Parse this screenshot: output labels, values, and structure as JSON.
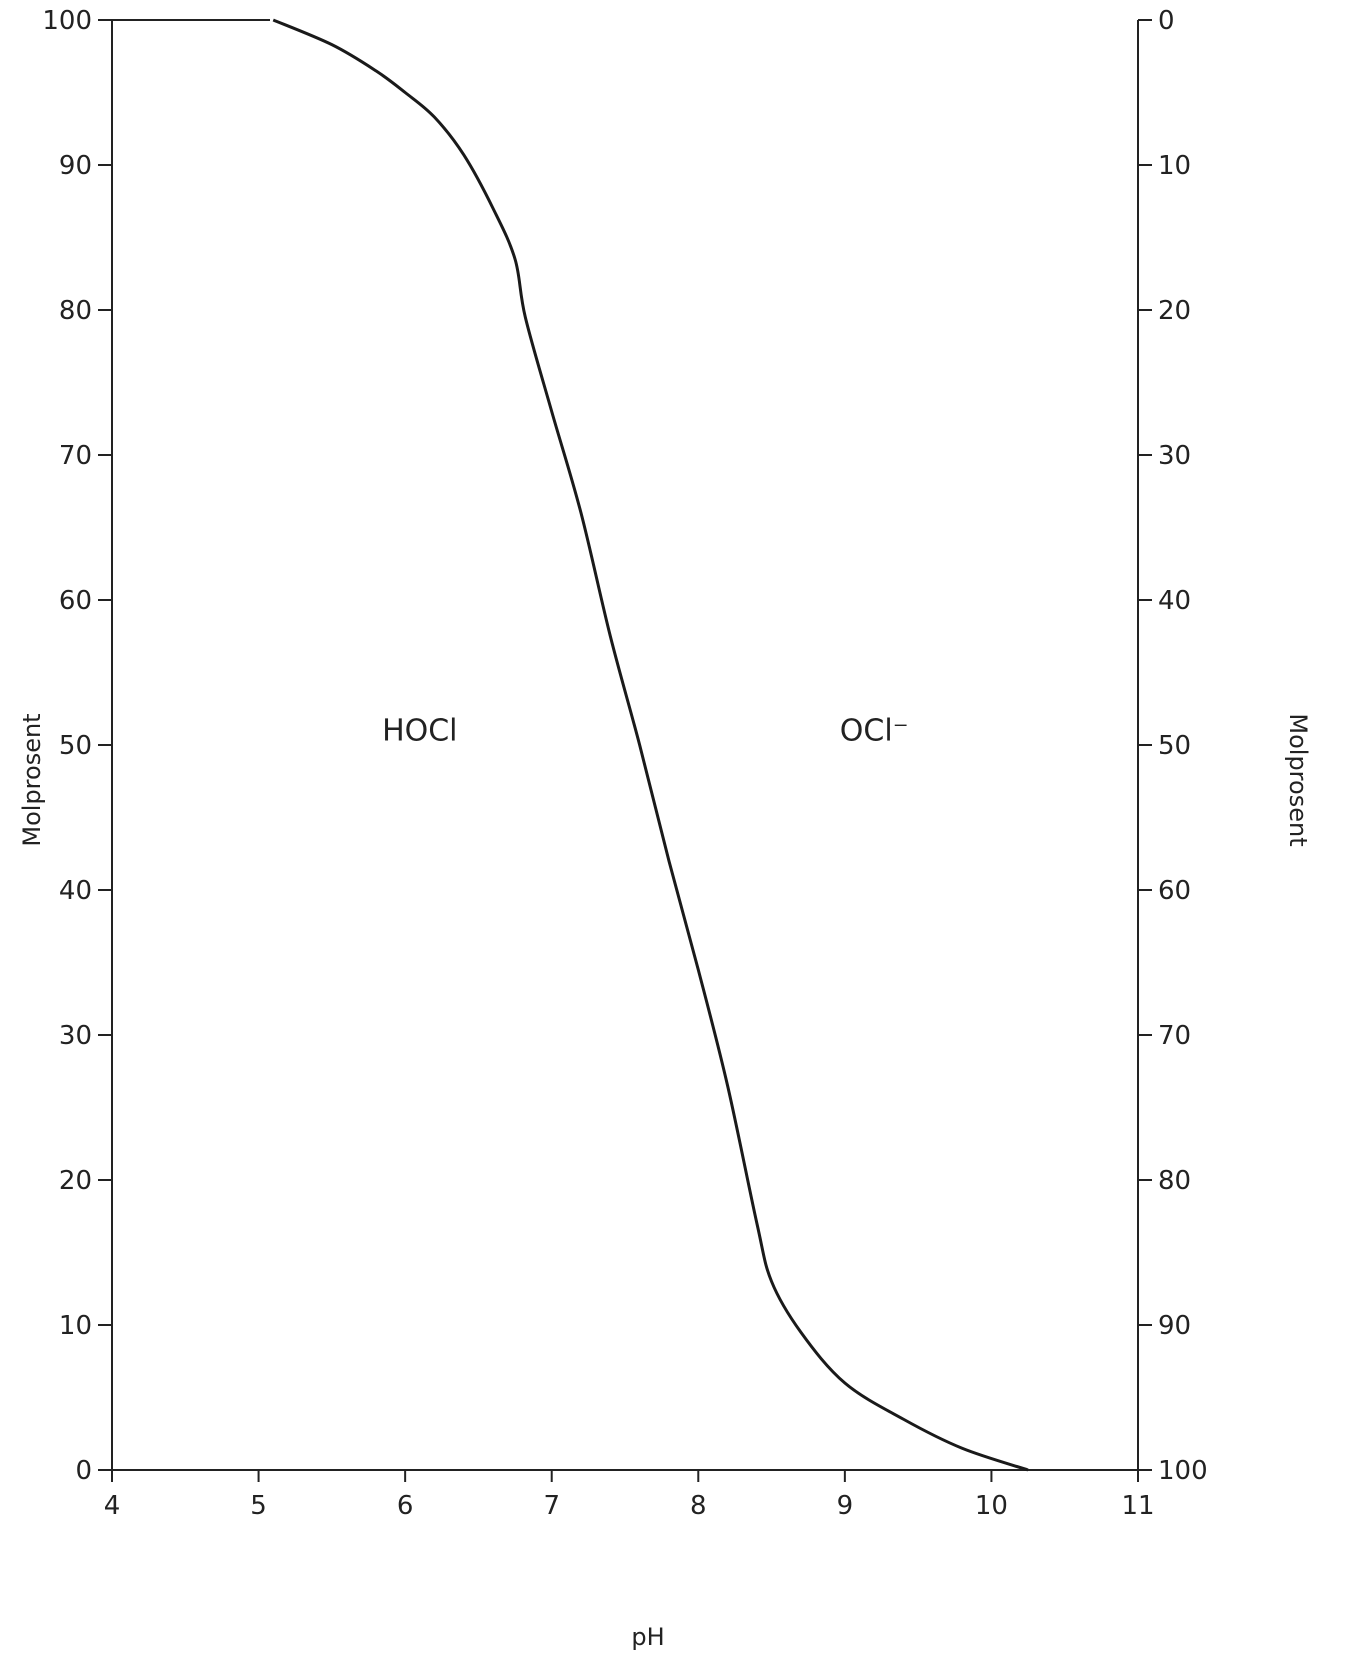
{
  "chart_data": {
    "type": "line",
    "xlabel": "pH",
    "ylabel_left": "Molprosent",
    "ylabel_right": "Molprosent",
    "xlim": [
      4,
      11
    ],
    "ylim_left": [
      0,
      100
    ],
    "ylim_right": [
      100,
      0
    ],
    "x_ticks": [
      "4",
      "5",
      "6",
      "7",
      "8",
      "9",
      "10",
      "11"
    ],
    "y_left_ticks": [
      "0",
      "10",
      "20",
      "30",
      "40",
      "50",
      "60",
      "70",
      "80",
      "90",
      "100"
    ],
    "y_right_ticks": [
      "100",
      "90",
      "80",
      "70",
      "60",
      "50",
      "40",
      "30",
      "20",
      "10",
      "0"
    ],
    "annotations": [
      {
        "text": "HOCl",
        "x": 6.1,
        "y": 51
      },
      {
        "text": "OCl⁻",
        "x": 9.2,
        "y": 51
      }
    ],
    "grid": false,
    "series": [
      {
        "values": [
          [
            5.1,
            100
          ],
          [
            5.5,
            98.3
          ],
          [
            5.8,
            96.5
          ],
          [
            6.0,
            95.0
          ],
          [
            6.2,
            93.3
          ],
          [
            6.4,
            90.7
          ],
          [
            6.6,
            87.0
          ],
          [
            6.75,
            83.5
          ],
          [
            6.82,
            79.5
          ],
          [
            7.0,
            73.0
          ],
          [
            7.2,
            66.0
          ],
          [
            7.4,
            57.5
          ],
          [
            7.6,
            50.0
          ],
          [
            7.8,
            42.0
          ],
          [
            8.0,
            34.5
          ],
          [
            8.2,
            26.5
          ],
          [
            8.4,
            17.0
          ],
          [
            8.5,
            13.0
          ],
          [
            8.7,
            9.5
          ],
          [
            9.0,
            6.0
          ],
          [
            9.4,
            3.5
          ],
          [
            9.8,
            1.5
          ],
          [
            10.25,
            0
          ]
        ]
      }
    ]
  }
}
